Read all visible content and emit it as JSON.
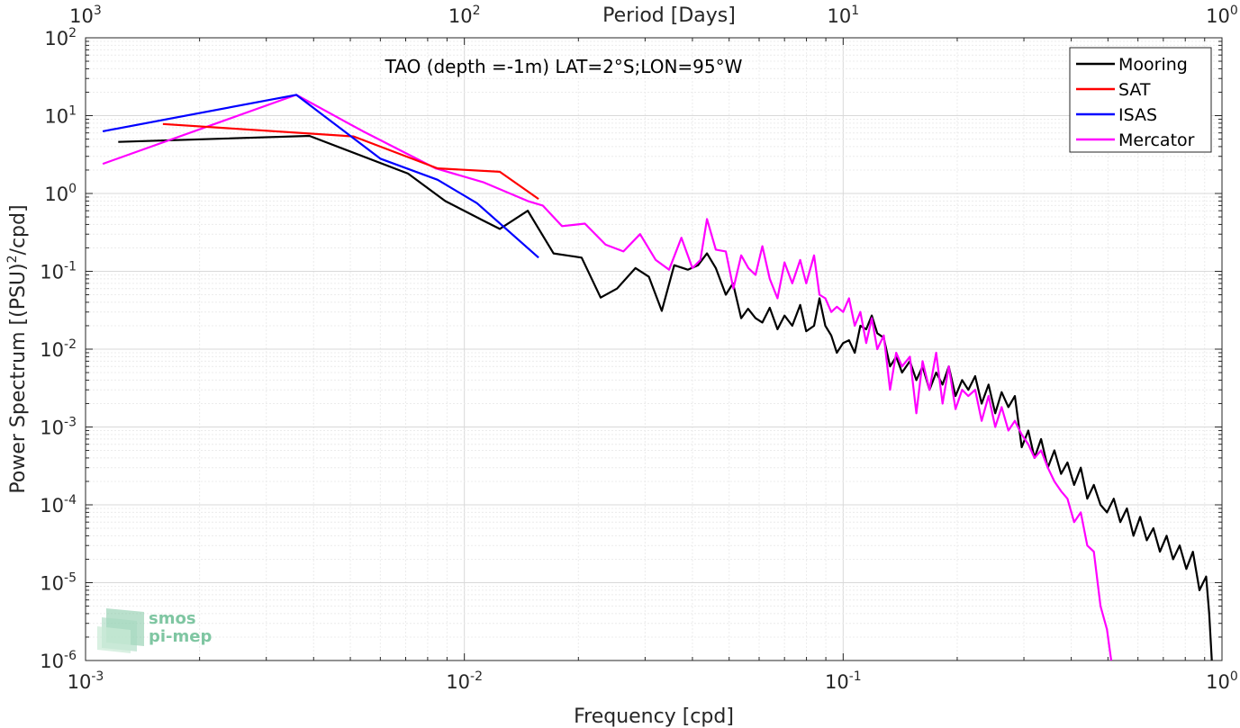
{
  "chart_data": {
    "type": "line",
    "title": "TAO (depth =-1m) LAT=2°S;LON=95°W",
    "xlabel": "Frequency [cpd]",
    "ylabel": "Power Spectrum [(PSU)²/cpd]",
    "ylabel_parts": [
      "Power Spectrum [(PSU)",
      "2",
      "/cpd]"
    ],
    "top_xlabel": "Period [Days]",
    "xscale": "log",
    "yscale": "log",
    "xlim": [
      0.001,
      1
    ],
    "ylim": [
      1e-06,
      100
    ],
    "grid": true,
    "legend_position": "top-right",
    "x_ticks": [
      {
        "value": 0.001,
        "base": "10",
        "exp": "-3"
      },
      {
        "value": 0.01,
        "base": "10",
        "exp": "-2"
      },
      {
        "value": 0.1,
        "base": "10",
        "exp": "-1"
      },
      {
        "value": 1,
        "base": "10",
        "exp": "0"
      }
    ],
    "y_ticks": [
      {
        "value": 100,
        "base": "10",
        "exp": "2"
      },
      {
        "value": 10,
        "base": "10",
        "exp": "1"
      },
      {
        "value": 1,
        "base": "10",
        "exp": "0"
      },
      {
        "value": 0.1,
        "base": "10",
        "exp": "-1"
      },
      {
        "value": 0.01,
        "base": "10",
        "exp": "-2"
      },
      {
        "value": 0.001,
        "base": "10",
        "exp": "-3"
      },
      {
        "value": 0.0001,
        "base": "10",
        "exp": "-4"
      },
      {
        "value": 1e-05,
        "base": "10",
        "exp": "-5"
      },
      {
        "value": 1e-06,
        "base": "10",
        "exp": "-6"
      }
    ],
    "top_ticks": [
      {
        "freq": 0.001,
        "base": "10",
        "exp": "3"
      },
      {
        "freq": 0.01,
        "base": "10",
        "exp": "2"
      },
      {
        "freq": 0.1,
        "base": "10",
        "exp": "1"
      },
      {
        "freq": 1,
        "base": "10",
        "exp": "0"
      }
    ],
    "series": [
      {
        "name": "Mooring",
        "color": "#000000",
        "points": [
          [
            0.00122,
            4.6
          ],
          [
            0.0039,
            5.5
          ],
          [
            0.0071,
            1.8
          ],
          [
            0.0089,
            0.8
          ],
          [
            0.0112,
            0.45
          ],
          [
            0.0124,
            0.35
          ],
          [
            0.0147,
            0.6
          ],
          [
            0.0172,
            0.17
          ],
          [
            0.0204,
            0.15
          ],
          [
            0.0229,
            0.046
          ],
          [
            0.0253,
            0.06
          ],
          [
            0.0283,
            0.11
          ],
          [
            0.0307,
            0.085
          ],
          [
            0.0332,
            0.031
          ],
          [
            0.0358,
            0.12
          ],
          [
            0.0389,
            0.105
          ],
          [
            0.0414,
            0.12
          ],
          [
            0.0437,
            0.17
          ],
          [
            0.0461,
            0.11
          ],
          [
            0.049,
            0.05
          ],
          [
            0.0512,
            0.07
          ],
          [
            0.0538,
            0.025
          ],
          [
            0.0561,
            0.033
          ],
          [
            0.0587,
            0.025
          ],
          [
            0.0612,
            0.022
          ],
          [
            0.064,
            0.034
          ],
          [
            0.0671,
            0.018
          ],
          [
            0.07,
            0.027
          ],
          [
            0.0734,
            0.02
          ],
          [
            0.077,
            0.037
          ],
          [
            0.0799,
            0.017
          ],
          [
            0.0838,
            0.02
          ],
          [
            0.0866,
            0.045
          ],
          [
            0.0897,
            0.02
          ],
          [
            0.093,
            0.015
          ],
          [
            0.0962,
            0.009
          ],
          [
            0.1,
            0.012
          ],
          [
            0.1036,
            0.013
          ],
          [
            0.1073,
            0.009
          ],
          [
            0.111,
            0.02
          ],
          [
            0.115,
            0.018
          ],
          [
            0.119,
            0.027
          ],
          [
            0.123,
            0.016
          ],
          [
            0.128,
            0.014
          ],
          [
            0.133,
            0.006
          ],
          [
            0.138,
            0.008
          ],
          [
            0.143,
            0.005
          ],
          [
            0.15,
            0.007
          ],
          [
            0.156,
            0.004
          ],
          [
            0.162,
            0.006
          ],
          [
            0.169,
            0.003
          ],
          [
            0.176,
            0.005
          ],
          [
            0.183,
            0.0035
          ],
          [
            0.19,
            0.006
          ],
          [
            0.198,
            0.0025
          ],
          [
            0.206,
            0.004
          ],
          [
            0.214,
            0.003
          ],
          [
            0.223,
            0.0045
          ],
          [
            0.232,
            0.002
          ],
          [
            0.242,
            0.0035
          ],
          [
            0.252,
            0.0015
          ],
          [
            0.262,
            0.0028
          ],
          [
            0.273,
            0.0018
          ],
          [
            0.284,
            0.0025
          ],
          [
            0.296,
            0.00055
          ],
          [
            0.308,
            0.0009
          ],
          [
            0.32,
            0.0004
          ],
          [
            0.333,
            0.0007
          ],
          [
            0.347,
            0.0003
          ],
          [
            0.361,
            0.0005
          ],
          [
            0.376,
            0.00025
          ],
          [
            0.391,
            0.00035
          ],
          [
            0.407,
            0.00018
          ],
          [
            0.424,
            0.0003
          ],
          [
            0.441,
            0.00012
          ],
          [
            0.459,
            0.00018
          ],
          [
            0.478,
            0.0001
          ],
          [
            0.497,
            8e-05
          ],
          [
            0.518,
            0.00012
          ],
          [
            0.539,
            6e-05
          ],
          [
            0.561,
            9e-05
          ],
          [
            0.584,
            4e-05
          ],
          [
            0.608,
            7e-05
          ],
          [
            0.633,
            3.5e-05
          ],
          [
            0.659,
            5e-05
          ],
          [
            0.686,
            2.5e-05
          ],
          [
            0.714,
            4e-05
          ],
          [
            0.743,
            2e-05
          ],
          [
            0.773,
            3e-05
          ],
          [
            0.805,
            1.5e-05
          ],
          [
            0.838,
            2.5e-05
          ],
          [
            0.872,
            8e-06
          ],
          [
            0.908,
            1.2e-05
          ],
          [
            0.925,
            4e-06
          ],
          [
            0.94,
            1e-06
          ]
        ]
      },
      {
        "name": "SAT",
        "color": "#ff0000",
        "points": [
          [
            0.0016,
            7.8
          ],
          [
            0.0051,
            5.4
          ],
          [
            0.0085,
            2.1
          ],
          [
            0.0124,
            1.9
          ],
          [
            0.0157,
            0.85
          ]
        ]
      },
      {
        "name": "ISAS",
        "color": "#0000ff",
        "points": [
          [
            0.00111,
            6.3
          ],
          [
            0.0036,
            18.5
          ],
          [
            0.006,
            2.8
          ],
          [
            0.0085,
            1.5
          ],
          [
            0.0108,
            0.75
          ],
          [
            0.0157,
            0.15
          ]
        ]
      },
      {
        "name": "Mercator",
        "color": "#ff00ff",
        "points": [
          [
            0.00111,
            2.4
          ],
          [
            0.0036,
            18.5
          ],
          [
            0.0054,
            6.3
          ],
          [
            0.0084,
            2.1
          ],
          [
            0.0112,
            1.4
          ],
          [
            0.0147,
            0.8
          ],
          [
            0.0161,
            0.7
          ],
          [
            0.0181,
            0.38
          ],
          [
            0.0208,
            0.41
          ],
          [
            0.0236,
            0.22
          ],
          [
            0.0263,
            0.18
          ],
          [
            0.0291,
            0.3
          ],
          [
            0.032,
            0.14
          ],
          [
            0.0347,
            0.105
          ],
          [
            0.0374,
            0.27
          ],
          [
            0.04,
            0.11
          ],
          [
            0.042,
            0.14
          ],
          [
            0.0437,
            0.47
          ],
          [
            0.0461,
            0.19
          ],
          [
            0.049,
            0.18
          ],
          [
            0.0513,
            0.06
          ],
          [
            0.0538,
            0.16
          ],
          [
            0.0562,
            0.11
          ],
          [
            0.0587,
            0.09
          ],
          [
            0.0612,
            0.21
          ],
          [
            0.064,
            0.08
          ],
          [
            0.0671,
            0.045
          ],
          [
            0.07,
            0.13
          ],
          [
            0.0734,
            0.07
          ],
          [
            0.077,
            0.14
          ],
          [
            0.0799,
            0.07
          ],
          [
            0.0838,
            0.16
          ],
          [
            0.0866,
            0.05
          ],
          [
            0.0897,
            0.045
          ],
          [
            0.093,
            0.03
          ],
          [
            0.0962,
            0.035
          ],
          [
            0.1,
            0.03
          ],
          [
            0.1036,
            0.045
          ],
          [
            0.1073,
            0.02
          ],
          [
            0.111,
            0.03
          ],
          [
            0.115,
            0.012
          ],
          [
            0.119,
            0.025
          ],
          [
            0.123,
            0.01
          ],
          [
            0.128,
            0.015
          ],
          [
            0.133,
            0.003
          ],
          [
            0.138,
            0.009
          ],
          [
            0.143,
            0.006
          ],
          [
            0.15,
            0.008
          ],
          [
            0.156,
            0.0015
          ],
          [
            0.162,
            0.007
          ],
          [
            0.169,
            0.003
          ],
          [
            0.176,
            0.009
          ],
          [
            0.183,
            0.002
          ],
          [
            0.19,
            0.006
          ],
          [
            0.198,
            0.0017
          ],
          [
            0.206,
            0.003
          ],
          [
            0.214,
            0.0025
          ],
          [
            0.223,
            0.003
          ],
          [
            0.232,
            0.0012
          ],
          [
            0.242,
            0.0025
          ],
          [
            0.252,
            0.001
          ],
          [
            0.262,
            0.0018
          ],
          [
            0.273,
            0.0009
          ],
          [
            0.284,
            0.0012
          ],
          [
            0.296,
            0.0008
          ],
          [
            0.308,
            0.0006
          ],
          [
            0.32,
            0.0004
          ],
          [
            0.333,
            0.0005
          ],
          [
            0.347,
            0.0003
          ],
          [
            0.361,
            0.0002
          ],
          [
            0.376,
            0.00015
          ],
          [
            0.391,
            0.00012
          ],
          [
            0.407,
            6e-05
          ],
          [
            0.424,
            8e-05
          ],
          [
            0.441,
            3e-05
          ],
          [
            0.459,
            2.5e-05
          ],
          [
            0.478,
            5e-06
          ],
          [
            0.497,
            2.5e-06
          ],
          [
            0.51,
            1e-06
          ]
        ]
      }
    ]
  },
  "watermark": {
    "line1": "smos",
    "line2": "pi-mep",
    "color": "#7fc6a2"
  }
}
